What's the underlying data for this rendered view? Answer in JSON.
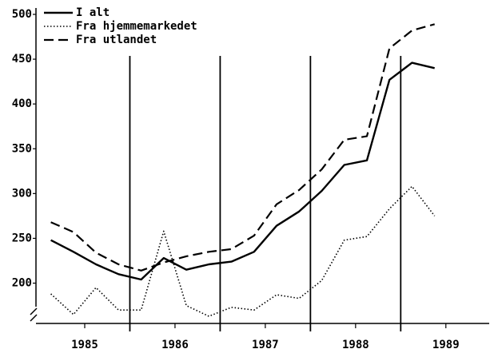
{
  "chart_data": {
    "type": "line",
    "x": [
      1985.125,
      1985.375,
      1985.625,
      1985.875,
      1986.125,
      1986.375,
      1986.625,
      1986.875,
      1987.125,
      1987.375,
      1987.625,
      1987.875,
      1988.125,
      1988.375,
      1988.625,
      1988.875,
      1989.125,
      1989.375
    ],
    "series": [
      {
        "name": "I alt",
        "color": "#000000",
        "dash": "solid",
        "values": [
          248,
          235,
          221,
          210,
          204,
          228,
          215,
          221,
          224,
          235,
          264,
          280,
          303,
          332,
          337,
          427,
          446,
          440
        ]
      },
      {
        "name": "Fra hjemmemarkedet",
        "color": "#000000",
        "dash": "dotted",
        "values": [
          188,
          165,
          195,
          170,
          170,
          258,
          175,
          163,
          173,
          170,
          187,
          183,
          203,
          248,
          252,
          283,
          308,
          275
        ]
      },
      {
        "name": "Fra utlandet",
        "color": "#000000",
        "dash": "dashed",
        "values": [
          268,
          257,
          234,
          221,
          214,
          223,
          230,
          235,
          238,
          253,
          288,
          304,
          327,
          360,
          364,
          462,
          482,
          489
        ]
      }
    ],
    "xlim": [
      1984.96,
      1989.98
    ],
    "xticks": [
      {
        "value": 1985.5,
        "label": "1985"
      },
      {
        "value": 1986.5,
        "label": "1986"
      },
      {
        "value": 1987.5,
        "label": "1987"
      },
      {
        "value": 1988.5,
        "label": "1988"
      },
      {
        "value": 1989.5,
        "label": "1989"
      }
    ],
    "vlines": [
      1986,
      1987,
      1988,
      1989
    ],
    "ylim": [
      155,
      500
    ],
    "yticks": [
      200,
      250,
      300,
      350,
      400,
      450,
      500
    ],
    "legend": "top-left"
  }
}
